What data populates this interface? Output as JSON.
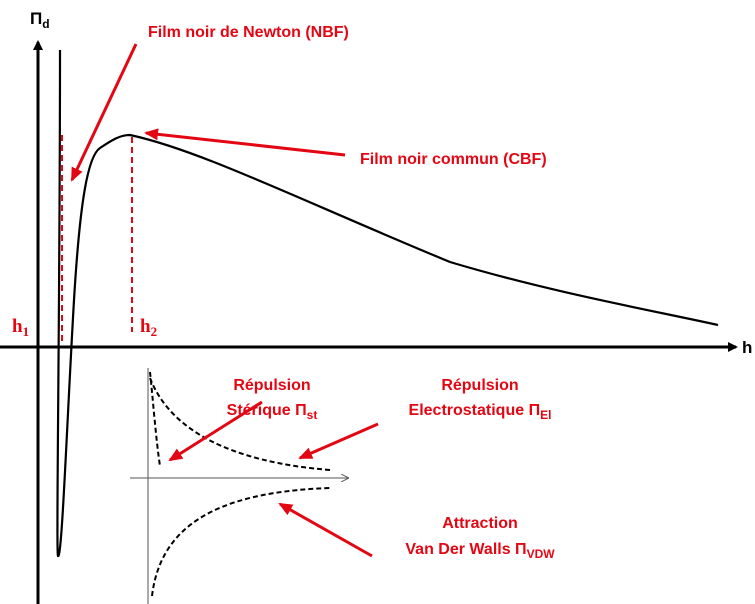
{
  "axes": {
    "y_label": {
      "base": "Π",
      "sub": "d"
    },
    "x_label": "h"
  },
  "markers": [
    {
      "base": "h",
      "sub": "1"
    },
    {
      "base": "h",
      "sub": "2"
    }
  ],
  "annotations": [
    "Film noir de Newton (NBF)",
    "Film noir commun (CBF)"
  ],
  "inset": {
    "steric": {
      "line1": "Répulsion",
      "line2": "Stérique Π",
      "sub": "st"
    },
    "electrostatic": {
      "line1": "Répulsion",
      "line2": "Electrostatique Π",
      "sub": "El"
    },
    "vdw": {
      "line1": "Attraction",
      "line2": "Van Der Walls Π",
      "sub": "VDW"
    }
  }
}
